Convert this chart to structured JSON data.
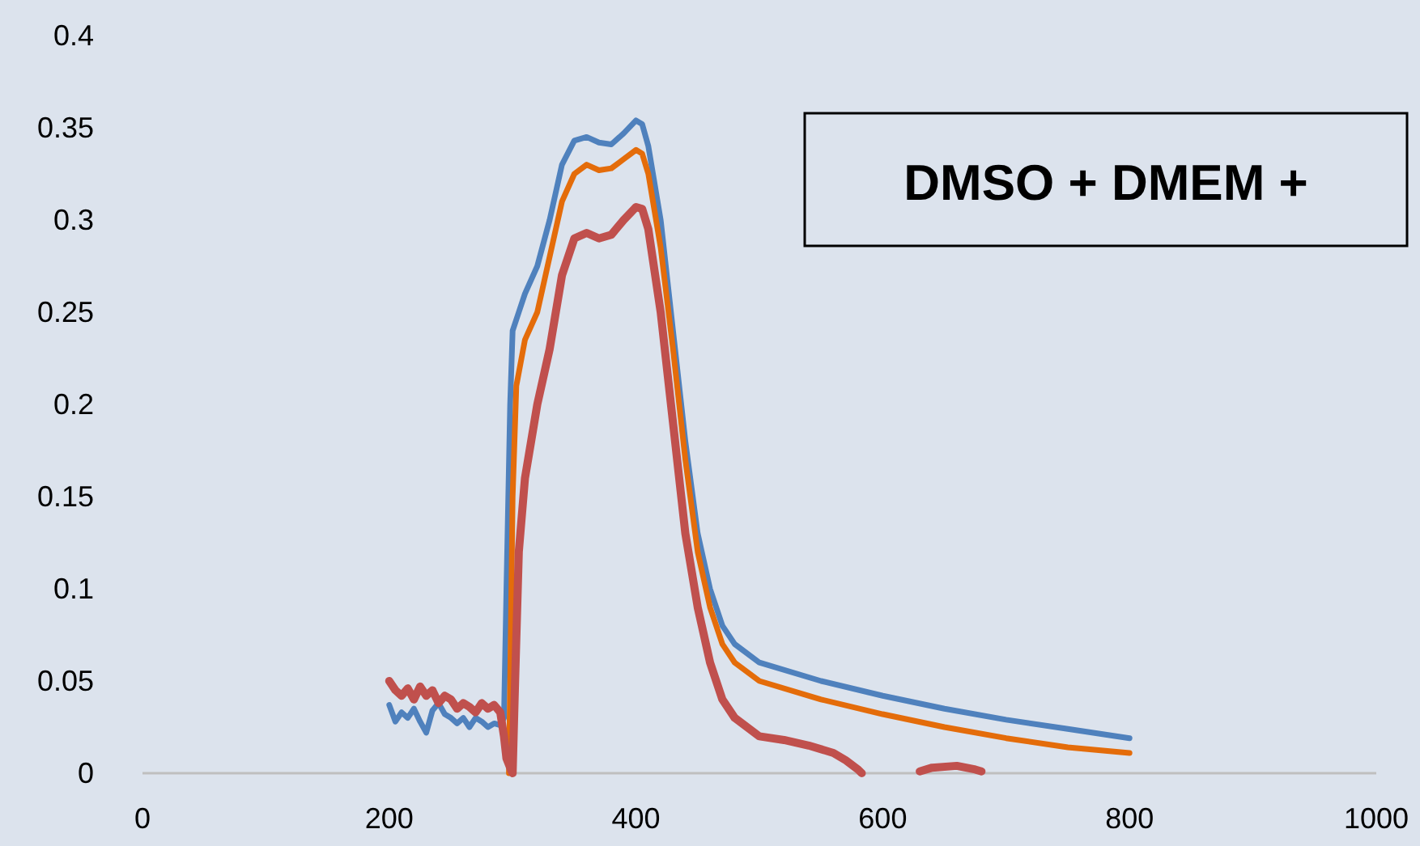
{
  "chart_data": {
    "type": "line",
    "xlim": [
      0,
      1000
    ],
    "xticks": [
      0,
      200,
      400,
      600,
      800,
      1000
    ],
    "ylim": [
      0,
      0.4
    ],
    "yticks": [
      0,
      0.05,
      0.1,
      0.15,
      0.2,
      0.25,
      0.3,
      0.35,
      0.4
    ],
    "grid": false,
    "marker": "none",
    "line_style": "solid",
    "annotations": [
      "DMSO + DMEM +"
    ],
    "series": [
      {
        "color": "#4f81bd",
        "x": [
          200,
          205,
          210,
          215,
          220,
          225,
          230,
          235,
          240,
          245,
          250,
          255,
          260,
          265,
          270,
          275,
          280,
          285,
          290,
          293,
          295,
          298,
          300,
          305,
          310,
          320,
          330,
          340,
          350,
          360,
          370,
          380,
          390,
          400,
          405,
          410,
          420,
          430,
          440,
          450,
          460,
          470,
          480,
          500,
          550,
          600,
          650,
          700,
          750,
          800
        ],
        "values": [
          0.037,
          0.028,
          0.033,
          0.03,
          0.035,
          0.028,
          0.022,
          0.034,
          0.038,
          0.032,
          0.03,
          0.027,
          0.03,
          0.025,
          0.03,
          0.028,
          0.025,
          0.027,
          0.026,
          0.03,
          0.1,
          0.2,
          0.24,
          0.25,
          0.26,
          0.275,
          0.3,
          0.33,
          0.343,
          0.345,
          0.342,
          0.341,
          0.347,
          0.354,
          0.352,
          0.34,
          0.3,
          0.24,
          0.18,
          0.13,
          0.1,
          0.08,
          0.07,
          0.06,
          0.05,
          0.042,
          0.035,
          0.029,
          0.024,
          0.019
        ]
      },
      {
        "color": "#e46c0a",
        "x": [
          297,
          300,
          303,
          310,
          320,
          330,
          340,
          350,
          360,
          370,
          380,
          390,
          400,
          405,
          410,
          420,
          430,
          440,
          450,
          460,
          470,
          480,
          500,
          550,
          600,
          650,
          700,
          750,
          800
        ],
        "values": [
          0,
          0.15,
          0.21,
          0.235,
          0.25,
          0.28,
          0.31,
          0.325,
          0.33,
          0.327,
          0.328,
          0.333,
          0.338,
          0.336,
          0.325,
          0.285,
          0.23,
          0.17,
          0.12,
          0.09,
          0.07,
          0.06,
          0.05,
          0.04,
          0.032,
          0.025,
          0.019,
          0.014,
          0.011
        ]
      },
      {
        "color": "#c0504d",
        "x": [
          200,
          205,
          210,
          215,
          220,
          225,
          230,
          235,
          240,
          245,
          250,
          255,
          260,
          265,
          270,
          275,
          280,
          285,
          290,
          293,
          295,
          298,
          300,
          302,
          305,
          310,
          315,
          320,
          330,
          340,
          350,
          360,
          370,
          380,
          390,
          400,
          405,
          410,
          420,
          430,
          440,
          450,
          460,
          470,
          480,
          500,
          520,
          540,
          560,
          570,
          580,
          583,
          600,
          630,
          640,
          660,
          675,
          680
        ],
        "values": [
          0.05,
          0.045,
          0.042,
          0.046,
          0.04,
          0.047,
          0.042,
          0.045,
          0.038,
          0.042,
          0.04,
          0.035,
          0.038,
          0.036,
          0.033,
          0.038,
          0.035,
          0.037,
          0.033,
          0.02,
          0.008,
          0.003,
          0,
          0.05,
          0.12,
          0.16,
          0.18,
          0.2,
          0.23,
          0.27,
          0.29,
          0.293,
          0.29,
          0.292,
          0.3,
          0.307,
          0.306,
          0.295,
          0.25,
          0.19,
          0.13,
          0.09,
          0.06,
          0.04,
          0.03,
          0.02,
          0.018,
          0.015,
          0.011,
          0.007,
          0.002,
          0,
          null,
          0.001,
          0.003,
          0.004,
          0.002,
          0.001
        ]
      }
    ]
  }
}
